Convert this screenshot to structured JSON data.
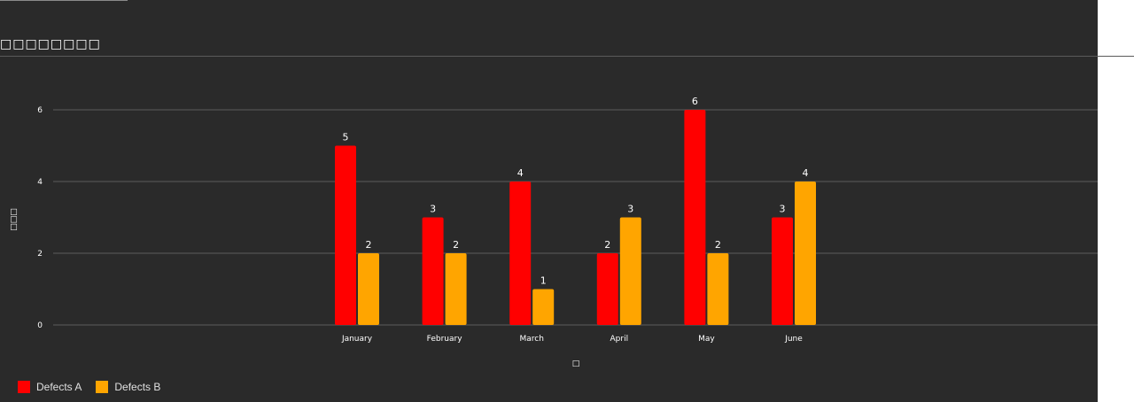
{
  "title": "□□□□□□□□",
  "chart_data": {
    "type": "bar",
    "categories": [
      "January",
      "February",
      "March",
      "April",
      "May",
      "June"
    ],
    "series": [
      {
        "name": "Defects A",
        "values": [
          5,
          3,
          4,
          2,
          6,
          3
        ],
        "color": "#ff0000"
      },
      {
        "name": "Defects B",
        "values": [
          2,
          2,
          1,
          3,
          2,
          4
        ],
        "color": "#ffa500"
      }
    ],
    "title": "□□□□□□□□",
    "xlabel": "□",
    "ylabel": "□□□",
    "ylim": [
      0,
      6
    ],
    "yticks": [
      0,
      2,
      4,
      6
    ],
    "grid": true,
    "legend": "bottom-left",
    "data_labels": true
  }
}
